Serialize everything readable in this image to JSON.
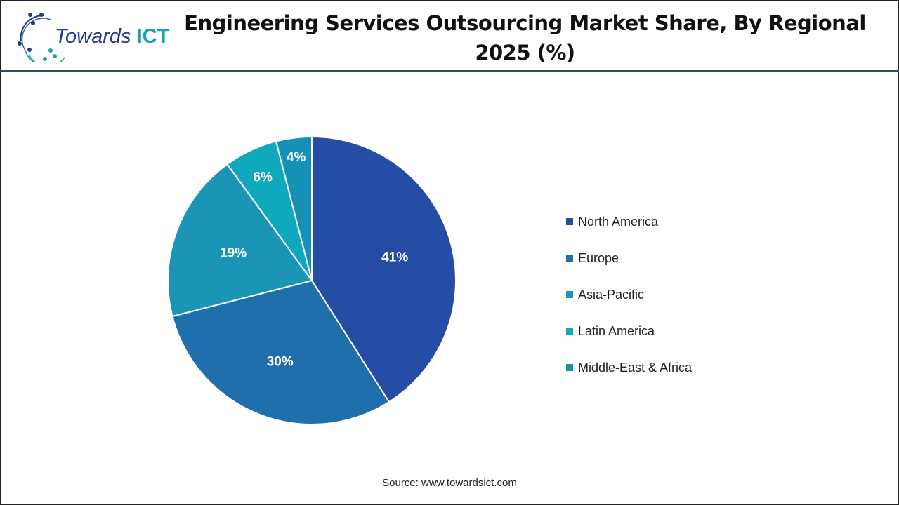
{
  "logo": {
    "text_main": "Towards",
    "text_accent": "ICT"
  },
  "source": "Source: www.towardsict.com",
  "chart_data": {
    "type": "pie",
    "title": "Engineering Services Outsourcing Market Share, By Regional 2025 (%)",
    "categories": [
      "North America",
      "Europe",
      "Asia-Pacific",
      "Latin America",
      "Middle-East & Africa"
    ],
    "values": [
      41,
      30,
      19,
      6,
      4
    ],
    "data_labels": [
      "41%",
      "30%",
      "19%",
      "6%",
      "4%"
    ],
    "colors": [
      "#264da6",
      "#1f6fad",
      "#1a95b5",
      "#10a8bd",
      "#1591b8"
    ],
    "legend_position": "right",
    "start": "top, clockwise"
  }
}
